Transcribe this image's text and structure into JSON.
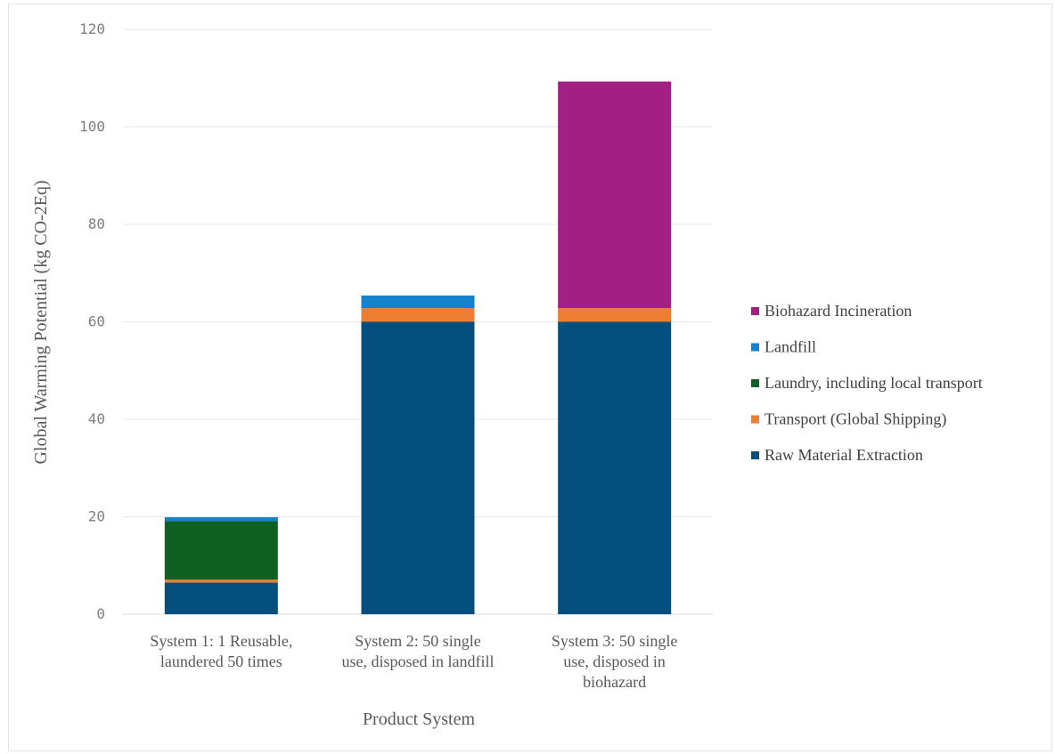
{
  "chart_data": {
    "type": "bar",
    "stacked": true,
    "xlabel": "Product System",
    "ylabel": "Global Warming Potential (kg CO-2Eq)",
    "ylim": [
      0,
      120
    ],
    "yticks": [
      0,
      20,
      40,
      60,
      80,
      100,
      120
    ],
    "grid": true,
    "legend_position": "right",
    "categories": [
      "System 1: 1 Reusable, laundered 50 times",
      "System 2: 50 single use, disposed in landfill",
      "System 3: 50 single use, disposed in biohazard"
    ],
    "category_lines": [
      [
        "System 1: 1 Reusable,",
        "laundered 50 times"
      ],
      [
        "System 2: 50 single",
        "use, disposed in landfill"
      ],
      [
        "System 3: 50 single",
        "use, disposed in",
        "biohazard"
      ]
    ],
    "series": [
      {
        "name": "Raw Material Extraction",
        "color": "#044f7e",
        "values": [
          6.5,
          60,
          60
        ]
      },
      {
        "name": "Transport (Global Shipping)",
        "color": "#ed7d31",
        "values": [
          0.6,
          2.8,
          2.8
        ]
      },
      {
        "name": "Laundry, including local transport",
        "color": "#0e6123",
        "values": [
          12,
          0,
          0
        ]
      },
      {
        "name": "Landfill",
        "color": "#1582ce",
        "values": [
          0.8,
          2.6,
          0
        ]
      },
      {
        "name": "Biohazard Incineration",
        "color": "#a21f83",
        "values": [
          0,
          0,
          46.5
        ]
      }
    ]
  }
}
